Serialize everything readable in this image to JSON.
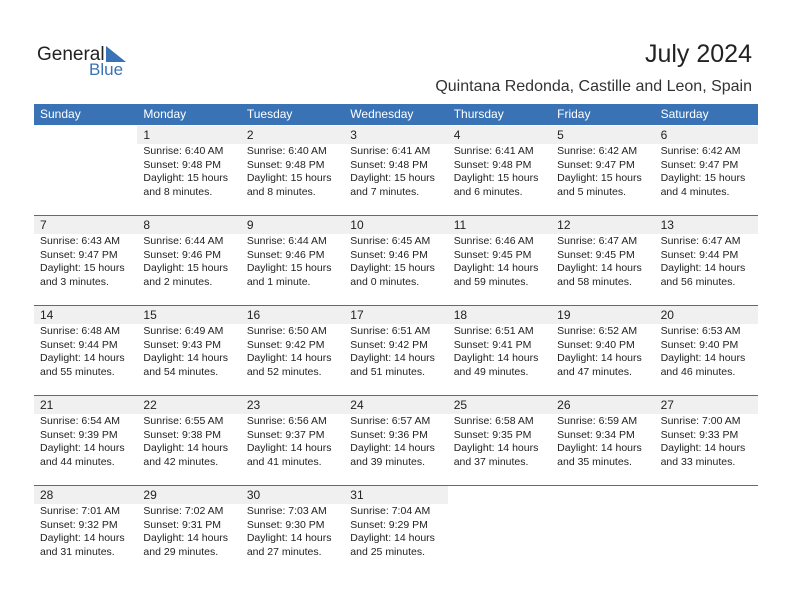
{
  "logo": {
    "word1": "General",
    "word2": "Blue"
  },
  "header": {
    "title": "July 2024",
    "subtitle": "Quintana Redonda, Castille and Leon, Spain"
  },
  "weekdays": [
    "Sunday",
    "Monday",
    "Tuesday",
    "Wednesday",
    "Thursday",
    "Friday",
    "Saturday"
  ],
  "weeks": [
    [
      null,
      {
        "day": "1",
        "sunrise": "Sunrise: 6:40 AM",
        "sunset": "Sunset: 9:48 PM",
        "daylight": "Daylight: 15 hours",
        "minutes": "and 8 minutes."
      },
      {
        "day": "2",
        "sunrise": "Sunrise: 6:40 AM",
        "sunset": "Sunset: 9:48 PM",
        "daylight": "Daylight: 15 hours",
        "minutes": "and 8 minutes."
      },
      {
        "day": "3",
        "sunrise": "Sunrise: 6:41 AM",
        "sunset": "Sunset: 9:48 PM",
        "daylight": "Daylight: 15 hours",
        "minutes": "and 7 minutes."
      },
      {
        "day": "4",
        "sunrise": "Sunrise: 6:41 AM",
        "sunset": "Sunset: 9:48 PM",
        "daylight": "Daylight: 15 hours",
        "minutes": "and 6 minutes."
      },
      {
        "day": "5",
        "sunrise": "Sunrise: 6:42 AM",
        "sunset": "Sunset: 9:47 PM",
        "daylight": "Daylight: 15 hours",
        "minutes": "and 5 minutes."
      },
      {
        "day": "6",
        "sunrise": "Sunrise: 6:42 AM",
        "sunset": "Sunset: 9:47 PM",
        "daylight": "Daylight: 15 hours",
        "minutes": "and 4 minutes."
      }
    ],
    [
      {
        "day": "7",
        "sunrise": "Sunrise: 6:43 AM",
        "sunset": "Sunset: 9:47 PM",
        "daylight": "Daylight: 15 hours",
        "minutes": "and 3 minutes."
      },
      {
        "day": "8",
        "sunrise": "Sunrise: 6:44 AM",
        "sunset": "Sunset: 9:46 PM",
        "daylight": "Daylight: 15 hours",
        "minutes": "and 2 minutes."
      },
      {
        "day": "9",
        "sunrise": "Sunrise: 6:44 AM",
        "sunset": "Sunset: 9:46 PM",
        "daylight": "Daylight: 15 hours",
        "minutes": "and 1 minute."
      },
      {
        "day": "10",
        "sunrise": "Sunrise: 6:45 AM",
        "sunset": "Sunset: 9:46 PM",
        "daylight": "Daylight: 15 hours",
        "minutes": "and 0 minutes."
      },
      {
        "day": "11",
        "sunrise": "Sunrise: 6:46 AM",
        "sunset": "Sunset: 9:45 PM",
        "daylight": "Daylight: 14 hours",
        "minutes": "and 59 minutes."
      },
      {
        "day": "12",
        "sunrise": "Sunrise: 6:47 AM",
        "sunset": "Sunset: 9:45 PM",
        "daylight": "Daylight: 14 hours",
        "minutes": "and 58 minutes."
      },
      {
        "day": "13",
        "sunrise": "Sunrise: 6:47 AM",
        "sunset": "Sunset: 9:44 PM",
        "daylight": "Daylight: 14 hours",
        "minutes": "and 56 minutes."
      }
    ],
    [
      {
        "day": "14",
        "sunrise": "Sunrise: 6:48 AM",
        "sunset": "Sunset: 9:44 PM",
        "daylight": "Daylight: 14 hours",
        "minutes": "and 55 minutes."
      },
      {
        "day": "15",
        "sunrise": "Sunrise: 6:49 AM",
        "sunset": "Sunset: 9:43 PM",
        "daylight": "Daylight: 14 hours",
        "minutes": "and 54 minutes."
      },
      {
        "day": "16",
        "sunrise": "Sunrise: 6:50 AM",
        "sunset": "Sunset: 9:42 PM",
        "daylight": "Daylight: 14 hours",
        "minutes": "and 52 minutes."
      },
      {
        "day": "17",
        "sunrise": "Sunrise: 6:51 AM",
        "sunset": "Sunset: 9:42 PM",
        "daylight": "Daylight: 14 hours",
        "minutes": "and 51 minutes."
      },
      {
        "day": "18",
        "sunrise": "Sunrise: 6:51 AM",
        "sunset": "Sunset: 9:41 PM",
        "daylight": "Daylight: 14 hours",
        "minutes": "and 49 minutes."
      },
      {
        "day": "19",
        "sunrise": "Sunrise: 6:52 AM",
        "sunset": "Sunset: 9:40 PM",
        "daylight": "Daylight: 14 hours",
        "minutes": "and 47 minutes."
      },
      {
        "day": "20",
        "sunrise": "Sunrise: 6:53 AM",
        "sunset": "Sunset: 9:40 PM",
        "daylight": "Daylight: 14 hours",
        "minutes": "and 46 minutes."
      }
    ],
    [
      {
        "day": "21",
        "sunrise": "Sunrise: 6:54 AM",
        "sunset": "Sunset: 9:39 PM",
        "daylight": "Daylight: 14 hours",
        "minutes": "and 44 minutes."
      },
      {
        "day": "22",
        "sunrise": "Sunrise: 6:55 AM",
        "sunset": "Sunset: 9:38 PM",
        "daylight": "Daylight: 14 hours",
        "minutes": "and 42 minutes."
      },
      {
        "day": "23",
        "sunrise": "Sunrise: 6:56 AM",
        "sunset": "Sunset: 9:37 PM",
        "daylight": "Daylight: 14 hours",
        "minutes": "and 41 minutes."
      },
      {
        "day": "24",
        "sunrise": "Sunrise: 6:57 AM",
        "sunset": "Sunset: 9:36 PM",
        "daylight": "Daylight: 14 hours",
        "minutes": "and 39 minutes."
      },
      {
        "day": "25",
        "sunrise": "Sunrise: 6:58 AM",
        "sunset": "Sunset: 9:35 PM",
        "daylight": "Daylight: 14 hours",
        "minutes": "and 37 minutes."
      },
      {
        "day": "26",
        "sunrise": "Sunrise: 6:59 AM",
        "sunset": "Sunset: 9:34 PM",
        "daylight": "Daylight: 14 hours",
        "minutes": "and 35 minutes."
      },
      {
        "day": "27",
        "sunrise": "Sunrise: 7:00 AM",
        "sunset": "Sunset: 9:33 PM",
        "daylight": "Daylight: 14 hours",
        "minutes": "and 33 minutes."
      }
    ],
    [
      {
        "day": "28",
        "sunrise": "Sunrise: 7:01 AM",
        "sunset": "Sunset: 9:32 PM",
        "daylight": "Daylight: 14 hours",
        "minutes": "and 31 minutes."
      },
      {
        "day": "29",
        "sunrise": "Sunrise: 7:02 AM",
        "sunset": "Sunset: 9:31 PM",
        "daylight": "Daylight: 14 hours",
        "minutes": "and 29 minutes."
      },
      {
        "day": "30",
        "sunrise": "Sunrise: 7:03 AM",
        "sunset": "Sunset: 9:30 PM",
        "daylight": "Daylight: 14 hours",
        "minutes": "and 27 minutes."
      },
      {
        "day": "31",
        "sunrise": "Sunrise: 7:04 AM",
        "sunset": "Sunset: 9:29 PM",
        "daylight": "Daylight: 14 hours",
        "minutes": "and 25 minutes."
      },
      null,
      null,
      null
    ]
  ]
}
